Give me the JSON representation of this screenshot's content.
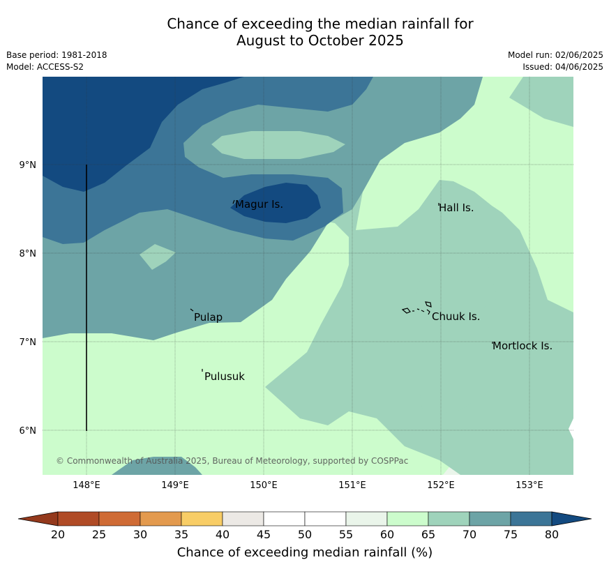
{
  "title": {
    "line1": "Chance of exceeding the median rainfall for",
    "line2": "August to October 2025"
  },
  "meta": {
    "base_period": "Base period: 1981-2018",
    "model": "Model: ACCESS-S2",
    "model_run": "Model run: 02/06/2025",
    "issued": "Issued: 04/06/2025"
  },
  "map": {
    "lat_labels": [
      "9°N",
      "8°N",
      "7°N",
      "6°N"
    ],
    "lon_labels": [
      "148°E",
      "149°E",
      "150°E",
      "151°E",
      "152°E",
      "153°E"
    ],
    "places": [
      "Magur Is.",
      "Hall Is.",
      "Pulap",
      "Chuuk Is.",
      "Mortlock Is.",
      "Pulusuk"
    ],
    "copyright": "© Commonwealth of Australia 2025, Bureau of Meteorology, supported by COSPPac"
  },
  "colorbar": {
    "ticks": [
      "20",
      "25",
      "30",
      "35",
      "40",
      "45",
      "50",
      "55",
      "60",
      "65",
      "70",
      "75",
      "80"
    ],
    "label": "Chance of exceeding median rainfall (%)",
    "colors": [
      "#b04b26",
      "#cf6b35",
      "#e39a4e",
      "#f8cd66",
      "#ece9e5",
      "#ffffff",
      "#ffffff",
      "#eaf5ea",
      "#ccfccc",
      "#9fd3bb",
      "#6da4a6",
      "#3c7597"
    ],
    "under_color": "#94391c",
    "over_color": "#134a80"
  },
  "legend_colors": {
    "c60_65": "#ccfccc",
    "c65_70": "#9fd3bb",
    "c70_75": "#6da4a6",
    "c75_80": "#3c7597",
    "c80": "#134a80",
    "c55_60": "#eaf5ea"
  }
}
